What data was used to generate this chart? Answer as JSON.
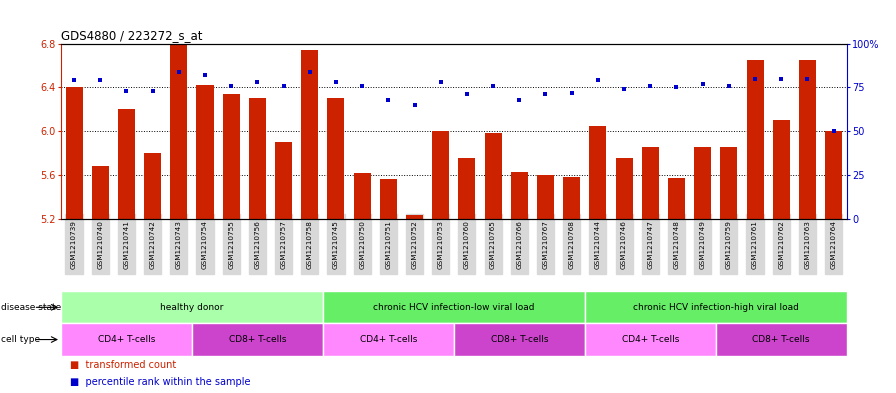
{
  "title": "GDS4880 / 223272_s_at",
  "samples": [
    "GSM1210739",
    "GSM1210740",
    "GSM1210741",
    "GSM1210742",
    "GSM1210743",
    "GSM1210754",
    "GSM1210755",
    "GSM1210756",
    "GSM1210757",
    "GSM1210758",
    "GSM1210745",
    "GSM1210750",
    "GSM1210751",
    "GSM1210752",
    "GSM1210753",
    "GSM1210760",
    "GSM1210765",
    "GSM1210766",
    "GSM1210767",
    "GSM1210768",
    "GSM1210744",
    "GSM1210746",
    "GSM1210747",
    "GSM1210748",
    "GSM1210749",
    "GSM1210759",
    "GSM1210761",
    "GSM1210762",
    "GSM1210763",
    "GSM1210764"
  ],
  "bar_values": [
    6.4,
    5.68,
    6.2,
    5.8,
    6.8,
    6.42,
    6.34,
    6.3,
    5.9,
    6.74,
    6.3,
    5.62,
    5.56,
    5.23,
    6.0,
    5.75,
    5.98,
    5.63,
    5.6,
    5.58,
    6.05,
    5.75,
    5.85,
    5.57,
    5.85,
    5.85,
    6.65,
    6.1,
    6.65,
    6.0
  ],
  "dot_values": [
    79,
    79,
    73,
    73,
    84,
    82,
    76,
    78,
    76,
    84,
    78,
    76,
    68,
    65,
    78,
    71,
    76,
    68,
    71,
    72,
    79,
    74,
    76,
    75,
    77,
    76,
    80,
    80,
    80,
    50
  ],
  "bar_color": "#cc2200",
  "dot_color": "#0000cc",
  "ylim_left": [
    5.2,
    6.8
  ],
  "ylim_right": [
    0,
    100
  ],
  "yticks_left": [
    5.2,
    5.6,
    6.0,
    6.4,
    6.8
  ],
  "yticks_right": [
    0,
    25,
    50,
    75,
    100
  ],
  "ytick_labels_right": [
    "0",
    "25",
    "50",
    "75",
    "100%"
  ],
  "grid_values": [
    5.6,
    6.0,
    6.4
  ],
  "disease_state_groups": [
    {
      "label": "healthy donor",
      "start": 0,
      "end": 9,
      "color": "#aaffaa"
    },
    {
      "label": "chronic HCV infection-low viral load",
      "start": 10,
      "end": 19,
      "color": "#66ee66"
    },
    {
      "label": "chronic HCV infection-high viral load",
      "start": 20,
      "end": 29,
      "color": "#66ee66"
    }
  ],
  "cell_type_groups": [
    {
      "label": "CD4+ T-cells",
      "start": 0,
      "end": 4,
      "color": "#ff88ff"
    },
    {
      "label": "CD8+ T-cells",
      "start": 5,
      "end": 9,
      "color": "#cc44cc"
    },
    {
      "label": "CD4+ T-cells",
      "start": 10,
      "end": 14,
      "color": "#ff88ff"
    },
    {
      "label": "CD8+ T-cells",
      "start": 15,
      "end": 19,
      "color": "#cc44cc"
    },
    {
      "label": "CD4+ T-cells",
      "start": 20,
      "end": 24,
      "color": "#ff88ff"
    },
    {
      "label": "CD8+ T-cells",
      "start": 25,
      "end": 29,
      "color": "#cc44cc"
    }
  ],
  "disease_state_label": "disease state",
  "cell_type_label": "cell type",
  "legend_bar_label": "transformed count",
  "legend_dot_label": "percentile rank within the sample",
  "xtick_bg_color": "#d8d8d8"
}
